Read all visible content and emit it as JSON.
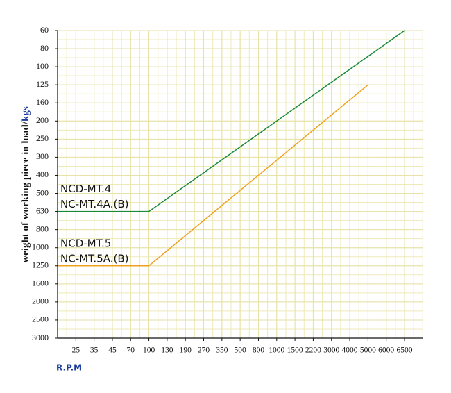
{
  "chart_data": {
    "type": "line",
    "ylabel": "weight of working piece in load/",
    "ylabel_unit": "kgs",
    "xlabel": "R.P.M",
    "categories": [
      null,
      25,
      35,
      45,
      70,
      100,
      130,
      190,
      270,
      350,
      500,
      800,
      1000,
      1500,
      2200,
      3000,
      4000,
      5000,
      6000,
      6500
    ],
    "ycategories": [
      60,
      80,
      100,
      125,
      160,
      200,
      250,
      300,
      400,
      500,
      630,
      800,
      1000,
      1250,
      1600,
      2000,
      2500,
      3000
    ],
    "grid": true,
    "series": [
      {
        "label_lines": [
          "NCD-MT.4",
          "NC-MT.4A.(B)"
        ],
        "color": "#1a8a3a",
        "x": [
          null,
          100,
          6500
        ],
        "values": [
          630,
          630,
          60
        ]
      },
      {
        "label_lines": [
          "NCD-MT.5",
          "NC-MT.5A.(B)"
        ],
        "color": "#f0a020",
        "x": [
          null,
          100,
          5000
        ],
        "values": [
          1250,
          1250,
          125
        ]
      }
    ]
  }
}
